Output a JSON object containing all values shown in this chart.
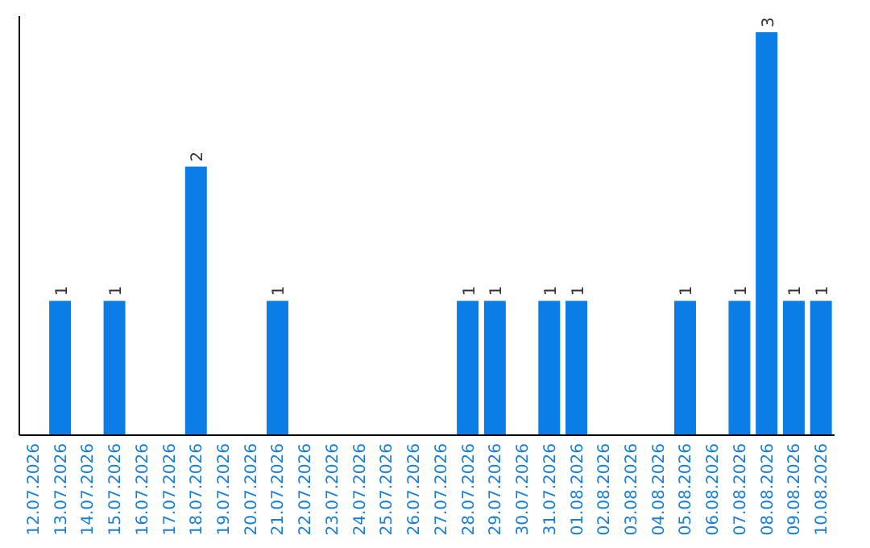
{
  "chart_data": {
    "type": "bar",
    "categories": [
      "12.07.2026",
      "13.07.2026",
      "14.07.2026",
      "15.07.2026",
      "16.07.2026",
      "17.07.2026",
      "18.07.2026",
      "19.07.2026",
      "20.07.2026",
      "21.07.2026",
      "22.07.2026",
      "23.07.2026",
      "24.07.2026",
      "25.07.2026",
      "26.07.2026",
      "27.07.2026",
      "28.07.2026",
      "29.07.2026",
      "30.07.2026",
      "31.07.2026",
      "01.08.2026",
      "02.08.2026",
      "03.08.2026",
      "04.08.2026",
      "05.08.2026",
      "06.08.2026",
      "07.08.2026",
      "08.08.2026",
      "09.08.2026",
      "10.08.2026"
    ],
    "values": [
      0,
      1,
      0,
      1,
      0,
      0,
      2,
      0,
      0,
      1,
      0,
      0,
      0,
      0,
      0,
      0,
      1,
      1,
      0,
      1,
      1,
      0,
      0,
      0,
      1,
      0,
      1,
      3,
      1,
      1
    ],
    "value_labels": [
      null,
      "1",
      null,
      "1",
      null,
      null,
      "2",
      null,
      null,
      "1",
      null,
      null,
      null,
      null,
      null,
      null,
      "1",
      "1",
      null,
      "1",
      "1",
      null,
      null,
      null,
      "1",
      null,
      "1",
      "3",
      "1",
      "1"
    ],
    "color": "#0a7de6",
    "ylim": [
      0,
      3
    ],
    "tick_labels": "x"
  }
}
